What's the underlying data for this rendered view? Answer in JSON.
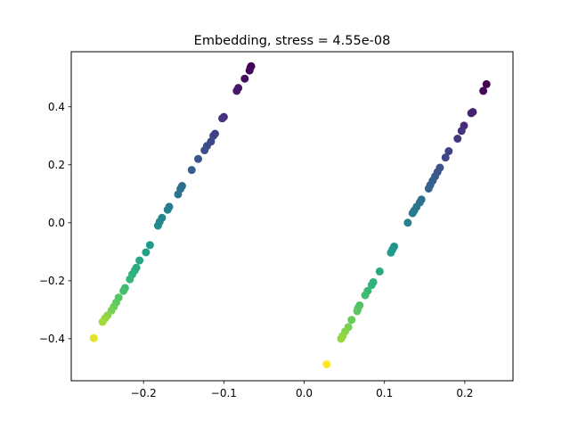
{
  "chart_data": {
    "type": "scatter",
    "title": "Embedding, stress = 4.55e-08",
    "xlabel": "",
    "ylabel": "",
    "xlim": [
      -0.29,
      0.26
    ],
    "ylim": [
      -0.545,
      0.59
    ],
    "xticks": [
      -0.2,
      -0.1,
      0.0,
      0.1,
      0.2
    ],
    "xtick_labels": [
      "−0.2",
      "−0.1",
      "0.0",
      "0.1",
      "0.2"
    ],
    "yticks": [
      -0.4,
      -0.2,
      0.0,
      0.2,
      0.4
    ],
    "ytick_labels": [
      "−0.4",
      "−0.2",
      "0.0",
      "0.2",
      "0.4"
    ],
    "grid": false,
    "colormap": "viridis",
    "marker_colors": [
      "#440154",
      "#482878",
      "#3e4989",
      "#31688e",
      "#26828e",
      "#1f9e89",
      "#35b779",
      "#6ece58",
      "#b5de2b",
      "#fde725"
    ],
    "points": [
      {
        "x": -0.066,
        "y": 0.54,
        "c": 0.0
      },
      {
        "x": -0.067,
        "y": 0.535,
        "c": 0.01
      },
      {
        "x": -0.068,
        "y": 0.525,
        "c": 0.02
      },
      {
        "x": -0.074,
        "y": 0.497,
        "c": 0.04
      },
      {
        "x": -0.082,
        "y": 0.465,
        "c": 0.06
      },
      {
        "x": -0.084,
        "y": 0.455,
        "c": 0.07
      },
      {
        "x": -0.1,
        "y": 0.365,
        "c": 0.14
      },
      {
        "x": -0.102,
        "y": 0.36,
        "c": 0.15
      },
      {
        "x": -0.111,
        "y": 0.307,
        "c": 0.19
      },
      {
        "x": -0.113,
        "y": 0.3,
        "c": 0.2
      },
      {
        "x": -0.116,
        "y": 0.28,
        "c": 0.22
      },
      {
        "x": -0.121,
        "y": 0.265,
        "c": 0.23
      },
      {
        "x": -0.124,
        "y": 0.25,
        "c": 0.25
      },
      {
        "x": -0.132,
        "y": 0.22,
        "c": 0.27
      },
      {
        "x": -0.14,
        "y": 0.182,
        "c": 0.3
      },
      {
        "x": -0.152,
        "y": 0.127,
        "c": 0.35
      },
      {
        "x": -0.154,
        "y": 0.117,
        "c": 0.36
      },
      {
        "x": -0.157,
        "y": 0.098,
        "c": 0.38
      },
      {
        "x": -0.168,
        "y": 0.055,
        "c": 0.42
      },
      {
        "x": -0.17,
        "y": 0.045,
        "c": 0.43
      },
      {
        "x": -0.177,
        "y": 0.017,
        "c": 0.46
      },
      {
        "x": -0.18,
        "y": 0.003,
        "c": 0.47
      },
      {
        "x": -0.182,
        "y": -0.01,
        "c": 0.48
      },
      {
        "x": -0.192,
        "y": -0.077,
        "c": 0.54
      },
      {
        "x": -0.197,
        "y": -0.102,
        "c": 0.57
      },
      {
        "x": -0.205,
        "y": -0.13,
        "c": 0.59
      },
      {
        "x": -0.209,
        "y": -0.155,
        "c": 0.61
      },
      {
        "x": -0.211,
        "y": -0.165,
        "c": 0.62
      },
      {
        "x": -0.214,
        "y": -0.178,
        "c": 0.64
      },
      {
        "x": -0.217,
        "y": -0.195,
        "c": 0.66
      },
      {
        "x": -0.223,
        "y": -0.225,
        "c": 0.69
      },
      {
        "x": -0.225,
        "y": -0.235,
        "c": 0.7
      },
      {
        "x": -0.231,
        "y": -0.258,
        "c": 0.73
      },
      {
        "x": -0.234,
        "y": -0.275,
        "c": 0.75
      },
      {
        "x": -0.237,
        "y": -0.29,
        "c": 0.77
      },
      {
        "x": -0.24,
        "y": -0.303,
        "c": 0.79
      },
      {
        "x": -0.245,
        "y": -0.32,
        "c": 0.82
      },
      {
        "x": -0.248,
        "y": -0.33,
        "c": 0.84
      },
      {
        "x": -0.251,
        "y": -0.342,
        "c": 0.86
      },
      {
        "x": -0.262,
        "y": -0.398,
        "c": 0.96
      },
      {
        "x": 0.227,
        "y": 0.478,
        "c": 0.0
      },
      {
        "x": 0.223,
        "y": 0.455,
        "c": 0.02
      },
      {
        "x": 0.21,
        "y": 0.382,
        "c": 0.08
      },
      {
        "x": 0.208,
        "y": 0.378,
        "c": 0.09
      },
      {
        "x": 0.199,
        "y": 0.335,
        "c": 0.12
      },
      {
        "x": 0.196,
        "y": 0.317,
        "c": 0.14
      },
      {
        "x": 0.191,
        "y": 0.29,
        "c": 0.16
      },
      {
        "x": 0.18,
        "y": 0.247,
        "c": 0.2
      },
      {
        "x": 0.176,
        "y": 0.225,
        "c": 0.22
      },
      {
        "x": 0.169,
        "y": 0.19,
        "c": 0.25
      },
      {
        "x": 0.166,
        "y": 0.175,
        "c": 0.26
      },
      {
        "x": 0.163,
        "y": 0.16,
        "c": 0.28
      },
      {
        "x": 0.16,
        "y": 0.145,
        "c": 0.29
      },
      {
        "x": 0.157,
        "y": 0.13,
        "c": 0.31
      },
      {
        "x": 0.155,
        "y": 0.118,
        "c": 0.32
      },
      {
        "x": 0.146,
        "y": 0.08,
        "c": 0.36
      },
      {
        "x": 0.144,
        "y": 0.07,
        "c": 0.37
      },
      {
        "x": 0.14,
        "y": 0.055,
        "c": 0.39
      },
      {
        "x": 0.137,
        "y": 0.042,
        "c": 0.4
      },
      {
        "x": 0.135,
        "y": 0.033,
        "c": 0.41
      },
      {
        "x": 0.129,
        "y": 0.0,
        "c": 0.44
      },
      {
        "x": 0.112,
        "y": -0.082,
        "c": 0.52
      },
      {
        "x": 0.11,
        "y": -0.092,
        "c": 0.53
      },
      {
        "x": 0.108,
        "y": -0.103,
        "c": 0.54
      },
      {
        "x": 0.094,
        "y": -0.168,
        "c": 0.6
      },
      {
        "x": 0.086,
        "y": -0.205,
        "c": 0.64
      },
      {
        "x": 0.084,
        "y": -0.215,
        "c": 0.65
      },
      {
        "x": 0.079,
        "y": -0.235,
        "c": 0.67
      },
      {
        "x": 0.076,
        "y": -0.25,
        "c": 0.69
      },
      {
        "x": 0.069,
        "y": -0.285,
        "c": 0.72
      },
      {
        "x": 0.067,
        "y": -0.295,
        "c": 0.73
      },
      {
        "x": 0.066,
        "y": -0.305,
        "c": 0.74
      },
      {
        "x": 0.059,
        "y": -0.335,
        "c": 0.77
      },
      {
        "x": 0.055,
        "y": -0.36,
        "c": 0.79
      },
      {
        "x": 0.051,
        "y": -0.375,
        "c": 0.81
      },
      {
        "x": 0.048,
        "y": -0.39,
        "c": 0.83
      },
      {
        "x": 0.046,
        "y": -0.4,
        "c": 0.84
      },
      {
        "x": 0.028,
        "y": -0.488,
        "c": 1.0
      }
    ]
  }
}
